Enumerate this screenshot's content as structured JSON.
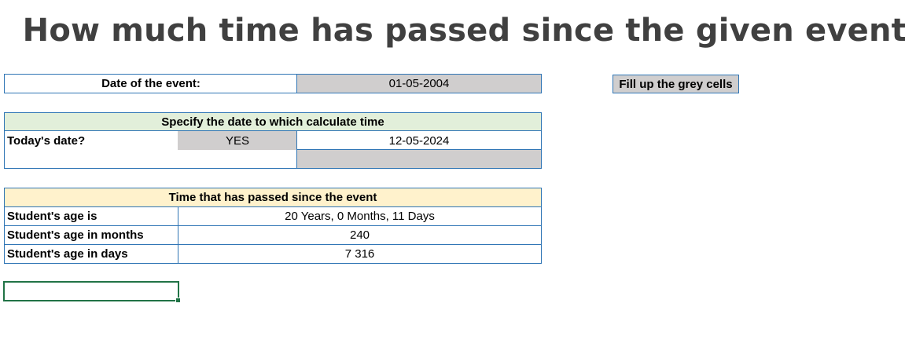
{
  "title": "How much time has passed since the given event?",
  "event": {
    "label": "Date of the event:",
    "value": "01-05-2004"
  },
  "hint": "Fill up the grey cells",
  "specify": {
    "header": "Specify the date to which calculate time",
    "today_label": "Today's date?",
    "today_choice": "YES",
    "today_value": "12-05-2024",
    "custom_date": ""
  },
  "result": {
    "header": "Time that has passed since the event",
    "rows": [
      {
        "label": "Student's age is",
        "value": "20 Years, 0 Months, 11 Days"
      },
      {
        "label": "Student's  age in months",
        "value": "240"
      },
      {
        "label": "Student's age in days",
        "value": "7 316"
      }
    ]
  },
  "colors": {
    "border": "#2f75b5",
    "grey_input": "#d0cece",
    "green_header": "#e2efda",
    "cream_header": "#fff2cc",
    "selection": "#217346",
    "title": "#404040"
  }
}
